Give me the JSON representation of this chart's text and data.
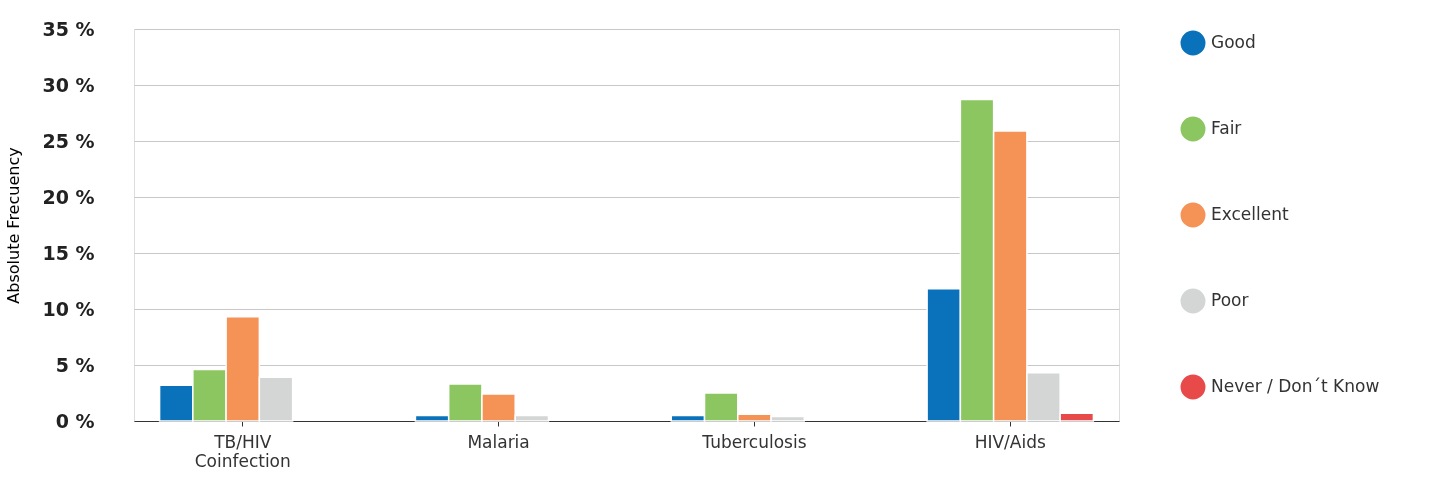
{
  "chart_data": {
    "type": "bar",
    "ylabel": "Absolute  Frecuency",
    "categories": [
      "TB/HIV Coinfection",
      "Malaria",
      "Tuberculosis",
      "HIV/Aids"
    ],
    "series": [
      {
        "name": "Good",
        "color": "#0a72ba",
        "values": [
          3.2,
          0.5,
          0.5,
          11.8
        ]
      },
      {
        "name": "Fair",
        "color": "#8bc660",
        "values": [
          4.6,
          3.3,
          2.5,
          28.7
        ]
      },
      {
        "name": "Excellent",
        "color": "#f59256",
        "values": [
          9.3,
          2.4,
          0.6,
          25.9
        ]
      },
      {
        "name": "Poor",
        "color": "#d3d6d4",
        "values": [
          3.9,
          0.5,
          0.4,
          4.3
        ]
      },
      {
        "name": "Never / Don´t Know",
        "color": "#e84a4a",
        "values": [
          null,
          null,
          null,
          0.7
        ]
      }
    ],
    "ylim": [
      0,
      35
    ],
    "yticks": [
      {
        "value": 0,
        "label": "0 %"
      },
      {
        "value": 5,
        "label": "5 %"
      },
      {
        "value": 10,
        "label": "10 %"
      },
      {
        "value": 15,
        "label": "15 %"
      },
      {
        "value": 20,
        "label": "20 %"
      },
      {
        "value": 25,
        "label": "25 %"
      },
      {
        "value": 30,
        "label": "30 %"
      },
      {
        "value": 35,
        "label": "35 %"
      }
    ],
    "grid": "y",
    "legend": "right"
  }
}
